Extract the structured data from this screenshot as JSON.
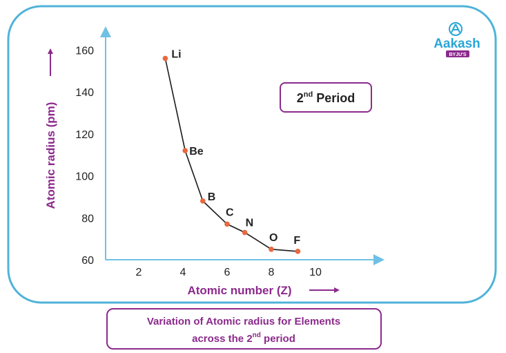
{
  "brand": {
    "name": "Aakash",
    "sub": "BYJU'S"
  },
  "period_label": {
    "main": "2",
    "sup": "nd",
    "rest": " Period"
  },
  "caption": {
    "line1": "Variation of Atomic radius for Elements",
    "line2_pre": "across the 2",
    "line2_sup": "nd",
    "line2_post": " period"
  },
  "colors": {
    "frame": "#4fb3d9",
    "axis": "#6ec1e4",
    "accent": "#8b2a8c",
    "point": "#e8683f",
    "line": "#1a1a1a",
    "label": "#222222",
    "brand": "#2aa6d6"
  },
  "chart_data": {
    "type": "line",
    "xlabel": "Atomic number (Z)",
    "ylabel": "Atomic radius (pm)",
    "xlim": [
      0.5,
      13
    ],
    "ylim": [
      60,
      170
    ],
    "x_ticks": [
      2,
      4,
      6,
      8,
      10
    ],
    "y_ticks": [
      60,
      80,
      100,
      120,
      140,
      160
    ],
    "grid": false,
    "points": [
      {
        "label": "Li",
        "x": 3.2,
        "y": 156
      },
      {
        "label": "Be",
        "x": 4.1,
        "y": 112
      },
      {
        "label": "B",
        "x": 4.9,
        "y": 88
      },
      {
        "label": "C",
        "x": 6.0,
        "y": 77
      },
      {
        "label": "N",
        "x": 6.8,
        "y": 73
      },
      {
        "label": "O",
        "x": 8.0,
        "y": 65
      },
      {
        "label": "F",
        "x": 9.2,
        "y": 64
      }
    ]
  }
}
